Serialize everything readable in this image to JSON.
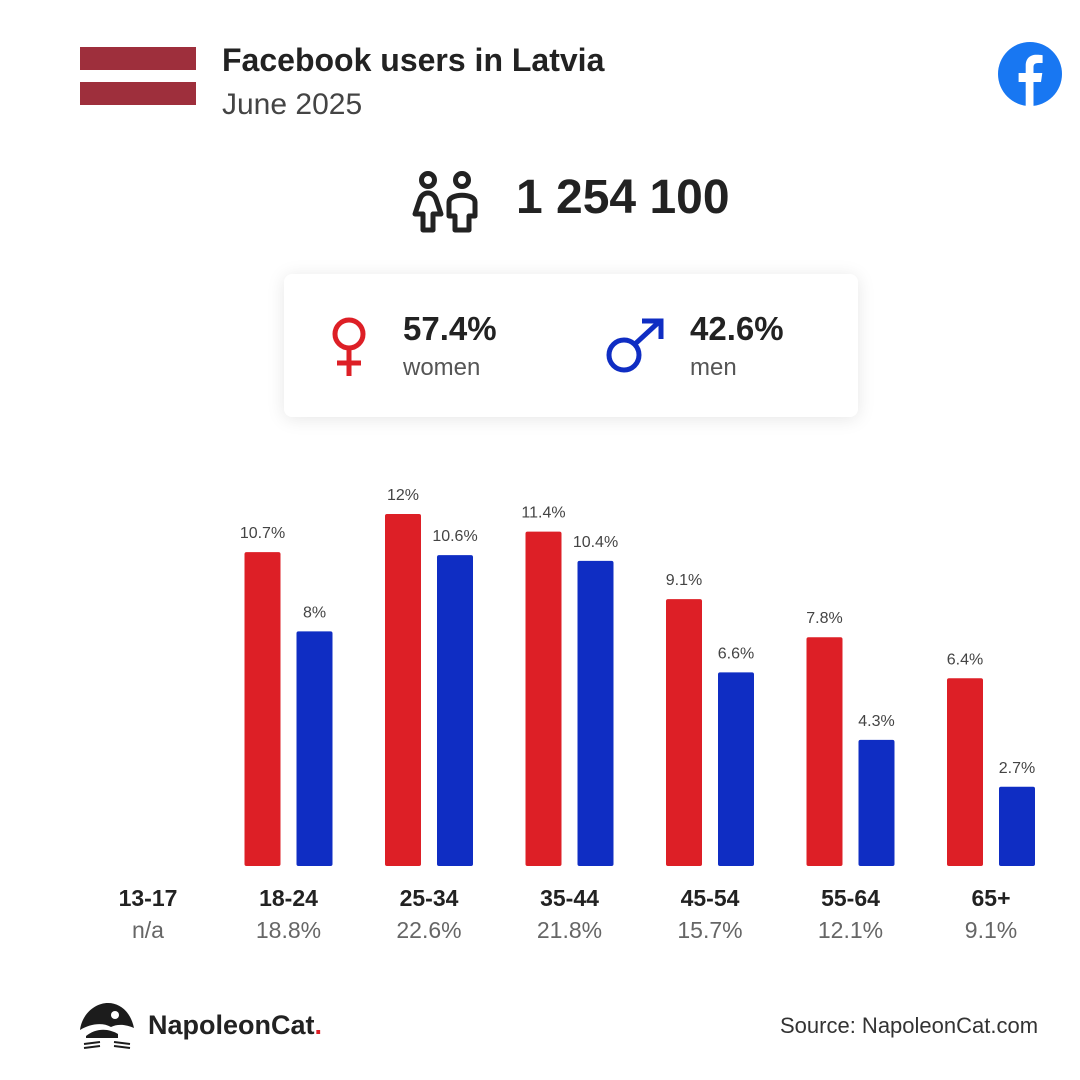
{
  "header": {
    "title": "Facebook users in Latvia",
    "subtitle": "June 2025",
    "flag_colors": [
      "#9e2f3c",
      "#ffffff",
      "#9e2f3c"
    ],
    "logo_icon": "facebook-logo-icon",
    "logo_color": "#1877f2"
  },
  "summary": {
    "total_users": "1 254 100",
    "icon": "people-icon"
  },
  "gender": {
    "women": {
      "pct": "57.4%",
      "label": "women",
      "color": "#dd1f26",
      "icon": "female-symbol-icon"
    },
    "men": {
      "pct": "42.6%",
      "label": "men",
      "color": "#0f2dc3",
      "icon": "male-symbol-icon"
    }
  },
  "chart_data": {
    "type": "bar",
    "categories": [
      "13-17",
      "18-24",
      "25-34",
      "35-44",
      "45-54",
      "55-64",
      "65+"
    ],
    "category_shares": [
      "n/a",
      "18.8%",
      "22.6%",
      "21.8%",
      "15.7%",
      "12.1%",
      "9.1%"
    ],
    "series": [
      {
        "name": "women",
        "color": "#dd1f26",
        "values": [
          null,
          10.7,
          12,
          11.4,
          9.1,
          7.8,
          6.4
        ],
        "labels": [
          "",
          "10.7%",
          "12%",
          "11.4%",
          "9.1%",
          "7.8%",
          "6.4%"
        ]
      },
      {
        "name": "men",
        "color": "#0f2dc3",
        "values": [
          null,
          8,
          10.6,
          10.4,
          6.6,
          4.3,
          2.7
        ],
        "labels": [
          "",
          "8%",
          "10.6%",
          "10.4%",
          "6.6%",
          "4.3%",
          "2.7%"
        ]
      }
    ],
    "ylim": [
      0,
      12
    ],
    "grid": false,
    "legend": "none"
  },
  "footer": {
    "brand_name": "NapoleonCat",
    "brand_dot": ".",
    "brand_icon": "napoleoncat-logo-icon",
    "source": "Source: NapoleonCat.com"
  }
}
